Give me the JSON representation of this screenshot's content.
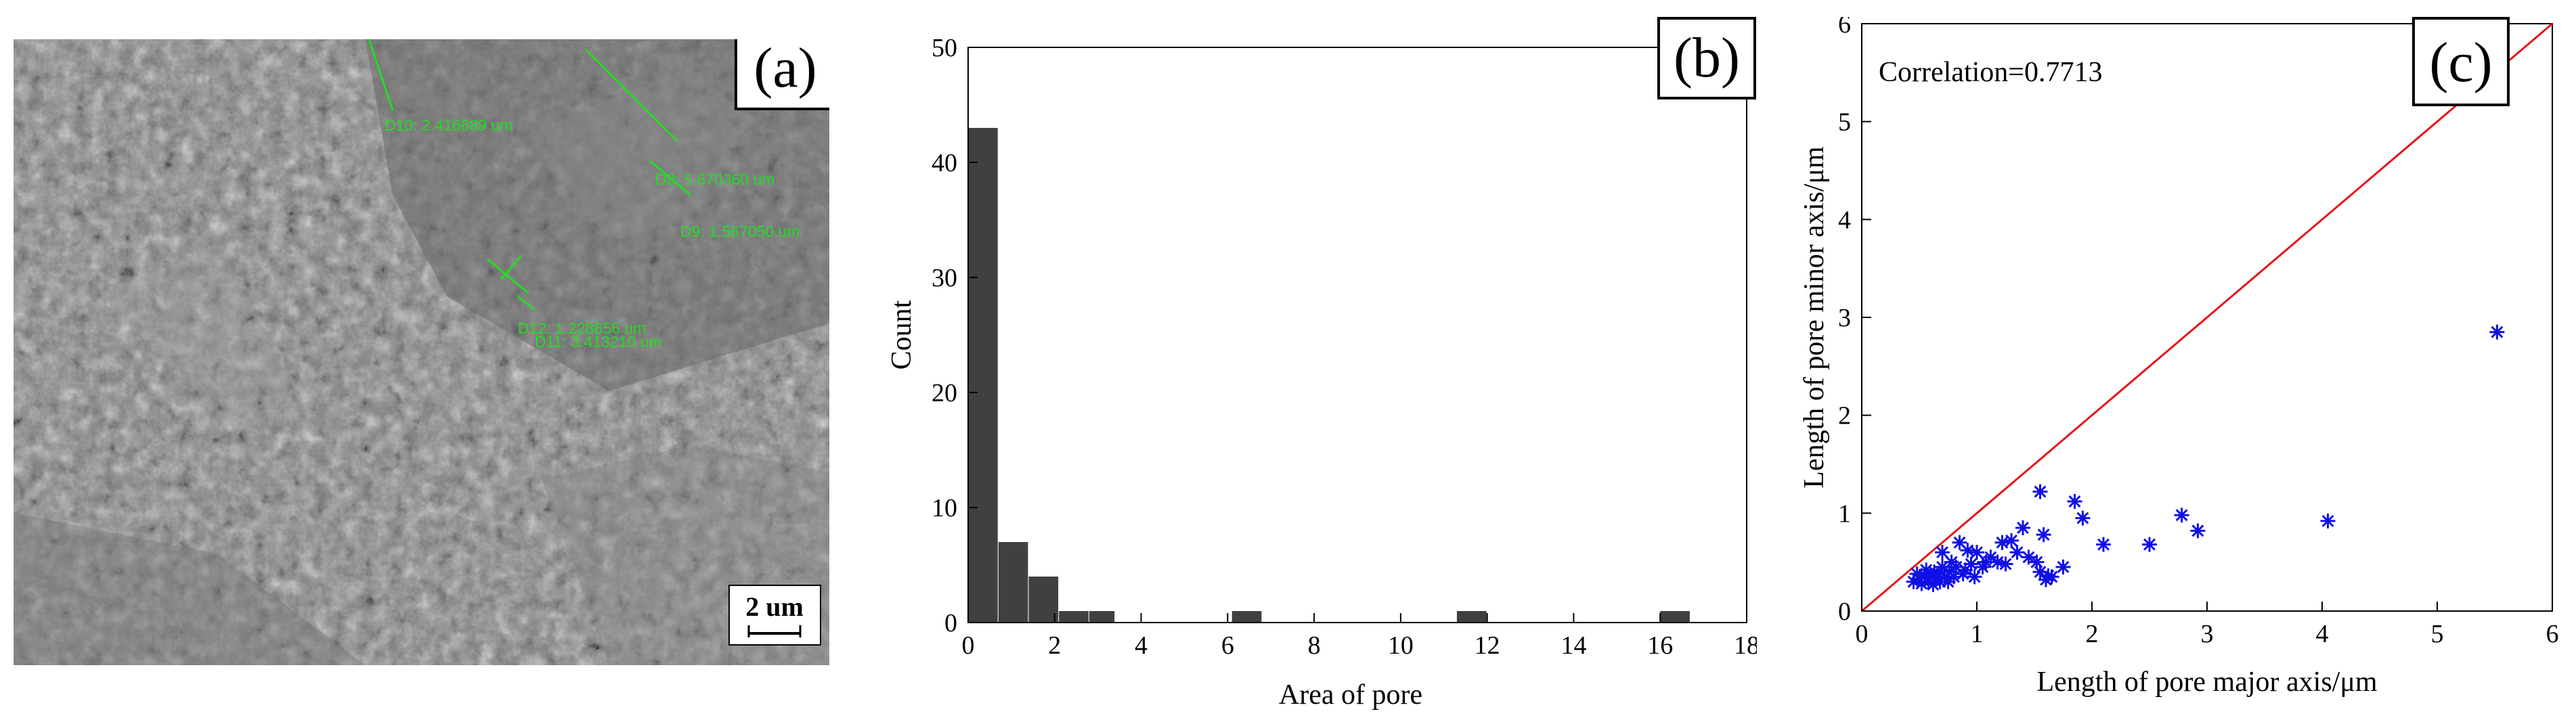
{
  "panel_a": {
    "label": "(a)",
    "scale_bar": "2 um",
    "measurements": [
      {
        "id": "D10",
        "text": "D10: 2.416689 um"
      },
      {
        "id": "D8",
        "text": "D8: 5.670360 um"
      },
      {
        "id": "D9",
        "text": "D9: 1.567050 um"
      },
      {
        "id": "D12",
        "text": "D12: 1.228656 um"
      },
      {
        "id": "D11",
        "text": "D11: 3.413210 um"
      }
    ]
  },
  "chart_data": [
    {
      "panel": "(b)",
      "type": "bar",
      "xlabel": "Area of pore",
      "ylabel": "Count",
      "xlim": [
        0,
        18
      ],
      "ylim": [
        0,
        50
      ],
      "xticks": [
        0,
        2,
        4,
        6,
        8,
        10,
        12,
        14,
        16,
        18
      ],
      "yticks": [
        0,
        10,
        20,
        30,
        40,
        50
      ],
      "bins": [
        {
          "start": 0.0,
          "end": 0.7,
          "count": 43
        },
        {
          "start": 0.7,
          "end": 1.4,
          "count": 7
        },
        {
          "start": 1.4,
          "end": 2.1,
          "count": 4
        },
        {
          "start": 2.1,
          "end": 2.8,
          "count": 1
        },
        {
          "start": 2.8,
          "end": 3.4,
          "count": 1
        },
        {
          "start": 6.1,
          "end": 6.8,
          "count": 1
        },
        {
          "start": 11.3,
          "end": 12.0,
          "count": 1
        },
        {
          "start": 16.0,
          "end": 16.7,
          "count": 1
        }
      ],
      "bar_color": "#404040"
    },
    {
      "panel": "(c)",
      "type": "scatter",
      "xlabel": "Length of pore major axis/μm",
      "ylabel": "Length of pore minor axis/μm",
      "xlim": [
        0,
        6
      ],
      "ylim": [
        0,
        6
      ],
      "xticks": [
        0,
        1,
        2,
        3,
        4,
        5,
        6
      ],
      "yticks": [
        0,
        1,
        2,
        3,
        4,
        5,
        6
      ],
      "annotation": "Correlation=0.7713",
      "reference_line": {
        "from": [
          0,
          0
        ],
        "to": [
          6,
          6
        ],
        "color": "#e8141a"
      },
      "marker_color": "#1010e6",
      "points": [
        [
          0.45,
          0.3
        ],
        [
          0.48,
          0.38
        ],
        [
          0.5,
          0.33
        ],
        [
          0.52,
          0.28
        ],
        [
          0.55,
          0.36
        ],
        [
          0.56,
          0.42
        ],
        [
          0.58,
          0.3
        ],
        [
          0.6,
          0.35
        ],
        [
          0.62,
          0.27
        ],
        [
          0.63,
          0.4
        ],
        [
          0.65,
          0.33
        ],
        [
          0.66,
          0.38
        ],
        [
          0.68,
          0.3
        ],
        [
          0.7,
          0.45
        ],
        [
          0.7,
          0.6
        ],
        [
          0.72,
          0.35
        ],
        [
          0.75,
          0.3
        ],
        [
          0.76,
          0.4
        ],
        [
          0.78,
          0.5
        ],
        [
          0.8,
          0.35
        ],
        [
          0.82,
          0.45
        ],
        [
          0.85,
          0.7
        ],
        [
          0.88,
          0.38
        ],
        [
          0.9,
          0.42
        ],
        [
          0.92,
          0.62
        ],
        [
          0.95,
          0.48
        ],
        [
          0.98,
          0.35
        ],
        [
          1.0,
          0.6
        ],
        [
          1.05,
          0.45
        ],
        [
          1.08,
          0.5
        ],
        [
          1.12,
          0.55
        ],
        [
          1.18,
          0.5
        ],
        [
          1.22,
          0.7
        ],
        [
          1.25,
          0.48
        ],
        [
          1.3,
          0.72
        ],
        [
          1.35,
          0.6
        ],
        [
          1.4,
          0.85
        ],
        [
          1.45,
          0.55
        ],
        [
          1.52,
          0.5
        ],
        [
          1.55,
          1.22
        ],
        [
          1.58,
          0.78
        ],
        [
          1.55,
          0.4
        ],
        [
          1.6,
          0.32
        ],
        [
          1.62,
          0.36
        ],
        [
          1.65,
          0.35
        ],
        [
          1.75,
          0.45
        ],
        [
          1.85,
          1.12
        ],
        [
          1.92,
          0.95
        ],
        [
          2.1,
          0.68
        ],
        [
          2.5,
          0.68
        ],
        [
          2.78,
          0.98
        ],
        [
          2.92,
          0.82
        ],
        [
          4.05,
          0.92
        ],
        [
          5.52,
          2.85
        ]
      ]
    }
  ]
}
